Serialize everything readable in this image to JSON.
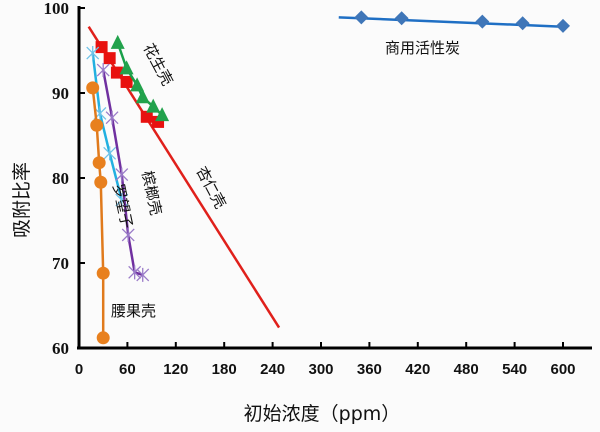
{
  "chart_data": {
    "type": "scatter",
    "title": "",
    "xlabel": "初始浓度（ppm）",
    "ylabel": "吸附比率",
    "xlim": [
      0,
      600
    ],
    "ylim": [
      60,
      100
    ],
    "xticks": [
      "0",
      "60",
      "120",
      "180",
      "240",
      "300",
      "360",
      "420",
      "480",
      "540",
      "600"
    ],
    "yticks": [
      "60",
      "70",
      "80",
      "90",
      "100"
    ],
    "grid": false,
    "series": [
      {
        "name": "商用活性炭",
        "color": "#1f6fc4",
        "marker": "diamond",
        "markerColor": "#3f76b8",
        "x": [
          350,
          400,
          500,
          550,
          600
        ],
        "y": [
          98.9,
          98.8,
          98.4,
          98.2,
          97.9
        ]
      },
      {
        "name": "杏仁壳",
        "color": "#e0201b",
        "marker": "square",
        "markerColor": "#e8110f",
        "x": [
          28,
          38,
          47,
          59,
          84,
          98
        ],
        "y": [
          95.4,
          94.1,
          92.4,
          91.3,
          87.2,
          86.6
        ],
        "fit": {
          "x": [
            12,
            248
          ],
          "y": [
            97.8,
            62.4
          ]
        }
      },
      {
        "name": "花生壳",
        "color": "#1aa04a",
        "marker": "triangle",
        "markerColor": "#22a24c",
        "x": [
          48,
          59,
          72,
          79,
          92,
          103
        ],
        "y": [
          95.9,
          92.9,
          90.9,
          89.5,
          88.4,
          87.4
        ]
      },
      {
        "name": "罗望子",
        "color": "#22b0e0",
        "marker": "x",
        "markerColor": "#6fc2e8",
        "x": [
          17,
          26,
          38,
          53
        ],
        "y": [
          94.7,
          87.6,
          82.9,
          77.4
        ]
      },
      {
        "name": "槟榔壳",
        "color": "#7030a0",
        "marker": "x",
        "markerColor": "#9a7bc8",
        "x": [
          30,
          41,
          53,
          61,
          69,
          79
        ],
        "y": [
          92.7,
          87.1,
          80.4,
          73.3,
          68.9,
          68.6
        ]
      },
      {
        "name": "腰果壳",
        "color": "#e07a1c",
        "marker": "circle",
        "markerColor": "#e8801e",
        "x": [
          17,
          22,
          25,
          27,
          30,
          30
        ],
        "y": [
          90.6,
          86.2,
          81.8,
          79.5,
          68.8,
          61.2
        ]
      }
    ]
  }
}
